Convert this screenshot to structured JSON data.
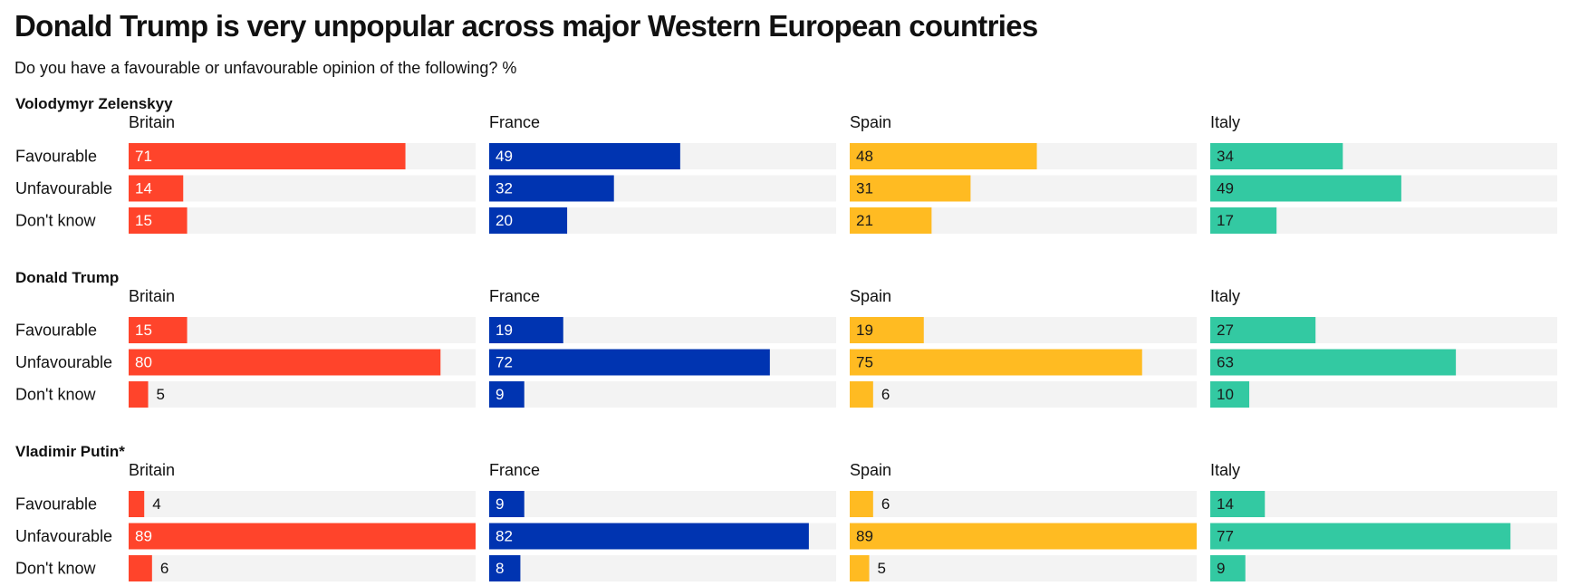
{
  "title": "Donald Trump is very unpopular across major Western European countries",
  "subtitle": "Do you have a favourable or unfavourable opinion of the following? %",
  "chart_data": {
    "type": "bar",
    "orientation": "horizontal",
    "xlim": [
      0,
      89
    ],
    "countries": [
      "Britain",
      "France",
      "Spain",
      "Italy"
    ],
    "colors": {
      "Britain": "#ff442b",
      "France": "#0034b1",
      "Spain": "#ffbb22",
      "Italy": "#33c9a2",
      "track": "#f3f3f3"
    },
    "categories": [
      "Favourable",
      "Unfavourable",
      "Don't know"
    ],
    "panels": [
      {
        "name": "Volodymyr Zelenskyy",
        "values": {
          "Britain": [
            71,
            14,
            15
          ],
          "France": [
            49,
            32,
            20
          ],
          "Spain": [
            48,
            31,
            21
          ],
          "Italy": [
            34,
            49,
            17
          ]
        }
      },
      {
        "name": "Donald Trump",
        "values": {
          "Britain": [
            15,
            80,
            5
          ],
          "France": [
            19,
            72,
            9
          ],
          "Spain": [
            19,
            75,
            6
          ],
          "Italy": [
            27,
            63,
            10
          ]
        }
      },
      {
        "name": "Vladimir Putin*",
        "values": {
          "Britain": [
            4,
            89,
            6
          ],
          "France": [
            9,
            82,
            8
          ],
          "Spain": [
            6,
            89,
            5
          ],
          "Italy": [
            14,
            77,
            9
          ]
        }
      }
    ]
  }
}
